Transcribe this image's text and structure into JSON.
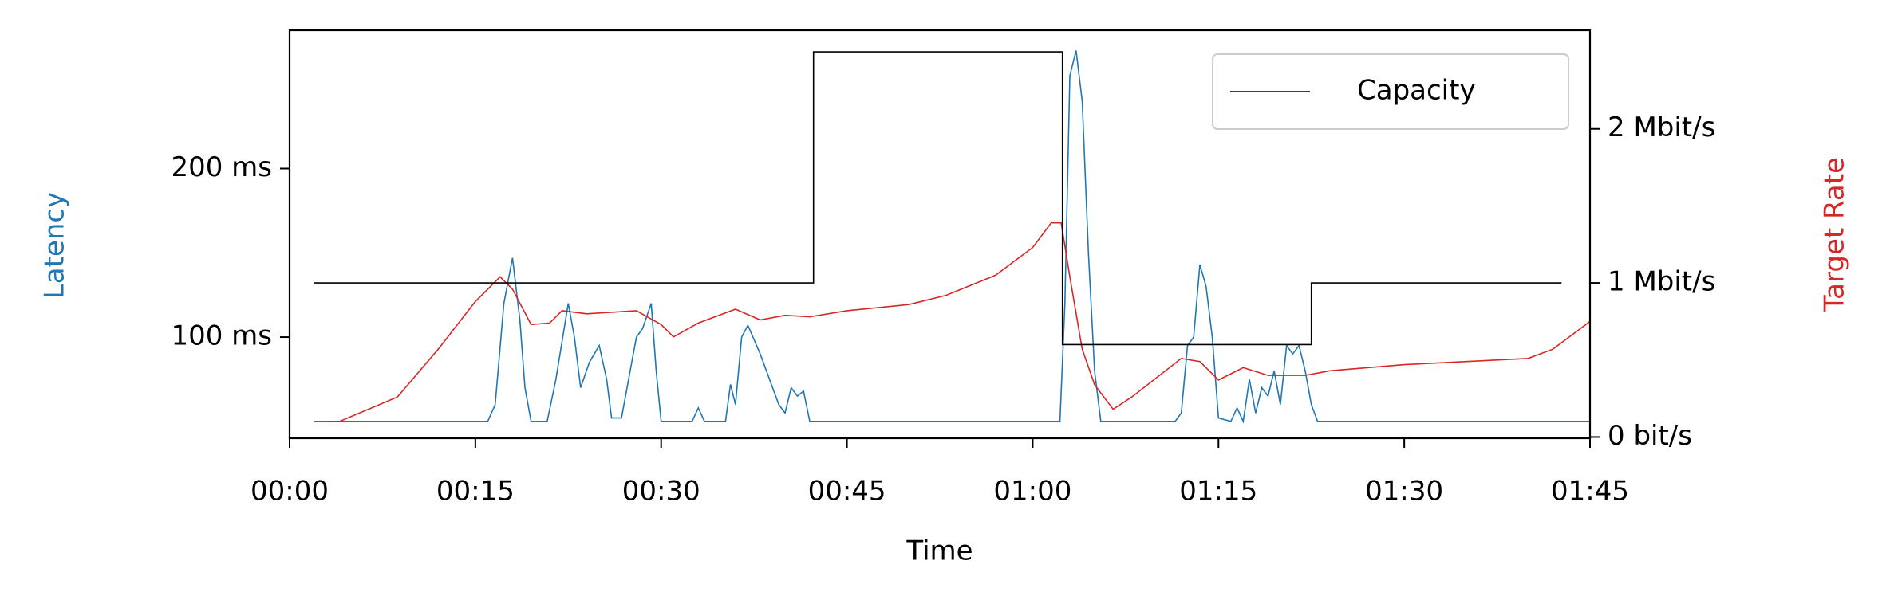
{
  "chart_data": {
    "type": "line",
    "xlabel": "Time",
    "ylabel": "Latency",
    "y2label": "Target Rate",
    "ylabel_color": "#1f77b4",
    "y2label_color": "#d62728",
    "xlim": [
      0,
      105
    ],
    "xticks": [
      {
        "value": 0,
        "label": "00:00"
      },
      {
        "value": 15,
        "label": "00:15"
      },
      {
        "value": 30,
        "label": "00:30"
      },
      {
        "value": 45,
        "label": "00:45"
      },
      {
        "value": 60,
        "label": "01:00"
      },
      {
        "value": 75,
        "label": "01:15"
      },
      {
        "value": 90,
        "label": "01:30"
      },
      {
        "value": 105,
        "label": "01:45"
      }
    ],
    "ylim": [
      40,
      282
    ],
    "yticks": [
      {
        "value": 100,
        "label": "100 ms"
      },
      {
        "value": 200,
        "label": "200 ms"
      }
    ],
    "y2lim": [
      -8000,
      2640000
    ],
    "y2ticks": [
      {
        "value": 0,
        "label": "0 bit/s"
      },
      {
        "value": 1000000,
        "label": "1 Mbit/s"
      },
      {
        "value": 2000000,
        "label": "2 Mbit/s"
      }
    ],
    "legend": "upper right",
    "series": [
      {
        "color": "#1f77b4",
        "x": [
          2,
          16,
          16.6,
          17.3,
          18,
          18.6,
          19,
          19.5,
          20.8,
          21.5,
          22.5,
          23,
          23.5,
          24.2,
          25,
          25.6,
          26,
          26.8,
          27.5,
          28,
          28.5,
          29.2,
          29.6,
          30,
          32.5,
          33,
          33.5,
          35.2,
          35.6,
          36,
          36.5,
          37,
          38,
          39,
          39.5,
          40,
          40.5,
          41,
          41.5,
          42,
          62.2,
          62.6,
          63,
          63.5,
          64,
          64.5,
          65,
          65.5,
          71.5,
          72,
          72.5,
          73,
          73.5,
          74,
          74.5,
          75,
          76,
          76.5,
          77,
          77.5,
          78,
          78.5,
          79,
          79.5,
          80,
          80.5,
          81,
          81.5,
          82,
          82.5,
          83,
          105
        ],
        "values": [
          50,
          50,
          60,
          120,
          147,
          110,
          70,
          50,
          50,
          75,
          120,
          100,
          70,
          85,
          95,
          75,
          52,
          52,
          80,
          100,
          105,
          120,
          80,
          50,
          50,
          58,
          50,
          50,
          72,
          60,
          100,
          107,
          90,
          70,
          60,
          55,
          70,
          65,
          68,
          50,
          50,
          120,
          255,
          270,
          240,
          150,
          80,
          50,
          50,
          55,
          95,
          100,
          143,
          130,
          100,
          52,
          50,
          58,
          50,
          75,
          55,
          70,
          65,
          80,
          60,
          95,
          90,
          95,
          80,
          60,
          50,
          50
        ]
      },
      {
        "color": "#d62728",
        "axis": "y2",
        "x": [
          3,
          4,
          8.7,
          12,
          15,
          17,
          18,
          19.5,
          21,
          22,
          24,
          28,
          30,
          31,
          33,
          36,
          38,
          40,
          42,
          45,
          50,
          53,
          57,
          60,
          61.5,
          62.3,
          63,
          64,
          65,
          66.5,
          68,
          72,
          73.5,
          75,
          77,
          79,
          82,
          84,
          90,
          100,
          102,
          104,
          105
        ],
        "values": [
          100000,
          100000,
          260000,
          570000,
          880000,
          1040000,
          960000,
          730000,
          740000,
          820000,
          800000,
          820000,
          730000,
          650000,
          740000,
          830000,
          760000,
          790000,
          780000,
          820000,
          860000,
          920000,
          1050000,
          1230000,
          1390000,
          1390000,
          1040000,
          570000,
          340000,
          180000,
          260000,
          510000,
          490000,
          370000,
          450000,
          400000,
          400000,
          430000,
          470000,
          510000,
          570000,
          690000,
          750000
        ]
      },
      {
        "name": "Capacity",
        "color": "#000000",
        "axis": "y2",
        "x": [
          2,
          42.3,
          42.3,
          62.4,
          62.4,
          82.5,
          82.5,
          102.7
        ],
        "values": [
          1000000,
          1000000,
          2500000,
          2500000,
          600000,
          600000,
          1000000,
          1000000
        ]
      }
    ]
  }
}
